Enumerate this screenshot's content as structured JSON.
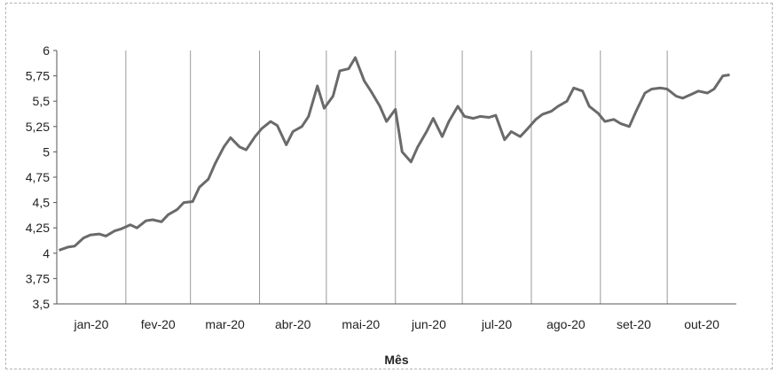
{
  "chart_data": {
    "type": "line",
    "title": "",
    "xlabel": "Mês",
    "ylabel": "",
    "ylim": [
      3.5,
      6
    ],
    "yticks": [
      "3,5",
      "3,75",
      "4",
      "4,25",
      "4,5",
      "4,75",
      "5",
      "5,25",
      "5,5",
      "5,75",
      "6"
    ],
    "categories": [
      "jan-20",
      "fev-20",
      "mar-20",
      "abr-20",
      "mai-20",
      "jun-20",
      "jul-20",
      "ago-20",
      "set-20",
      "out-20"
    ],
    "grid": "vertical",
    "line_color": "#6a6a6a",
    "series": [
      {
        "x": [
          "2020-01-02",
          "2020-01-06",
          "2020-01-09",
          "2020-01-13",
          "2020-01-16",
          "2020-01-20",
          "2020-01-23",
          "2020-01-27",
          "2020-01-30",
          "2020-02-03",
          "2020-02-06",
          "2020-02-10",
          "2020-02-13",
          "2020-02-17",
          "2020-02-20",
          "2020-02-24",
          "2020-02-27",
          "2020-03-02",
          "2020-03-05",
          "2020-03-09",
          "2020-03-12",
          "2020-03-16",
          "2020-03-19",
          "2020-03-23",
          "2020-03-26",
          "2020-03-30",
          "2020-04-02",
          "2020-04-06",
          "2020-04-09",
          "2020-04-13",
          "2020-04-16",
          "2020-04-20",
          "2020-04-23",
          "2020-04-27",
          "2020-04-30",
          "2020-05-04",
          "2020-05-07",
          "2020-05-11",
          "2020-05-14",
          "2020-05-18",
          "2020-05-21",
          "2020-05-25",
          "2020-05-28",
          "2020-06-01",
          "2020-06-04",
          "2020-06-08",
          "2020-06-11",
          "2020-06-15",
          "2020-06-18",
          "2020-06-22",
          "2020-06-25",
          "2020-06-29",
          "2020-07-02",
          "2020-07-06",
          "2020-07-09",
          "2020-07-13",
          "2020-07-16",
          "2020-07-20",
          "2020-07-23",
          "2020-07-27",
          "2020-07-30",
          "2020-08-03",
          "2020-08-06",
          "2020-08-10",
          "2020-08-13",
          "2020-08-17",
          "2020-08-20",
          "2020-08-24",
          "2020-08-27",
          "2020-08-31",
          "2020-09-03",
          "2020-09-07",
          "2020-09-10",
          "2020-09-14",
          "2020-09-17",
          "2020-09-21",
          "2020-09-24",
          "2020-09-28",
          "2020-10-01",
          "2020-10-05",
          "2020-10-08",
          "2020-10-12",
          "2020-10-15",
          "2020-10-19",
          "2020-10-22",
          "2020-10-26",
          "2020-10-29"
        ],
        "values": [
          4.03,
          4.06,
          4.07,
          4.15,
          4.18,
          4.19,
          4.17,
          4.22,
          4.24,
          4.28,
          4.25,
          4.32,
          4.33,
          4.31,
          4.38,
          4.43,
          4.5,
          4.51,
          4.65,
          4.73,
          4.88,
          5.05,
          5.14,
          5.05,
          5.02,
          5.15,
          5.23,
          5.3,
          5.26,
          5.07,
          5.2,
          5.25,
          5.35,
          5.65,
          5.43,
          5.55,
          5.8,
          5.82,
          5.93,
          5.7,
          5.6,
          5.45,
          5.3,
          5.42,
          5.0,
          4.9,
          5.05,
          5.2,
          5.33,
          5.15,
          5.3,
          5.45,
          5.35,
          5.33,
          5.35,
          5.34,
          5.36,
          5.12,
          5.2,
          5.15,
          5.22,
          5.32,
          5.37,
          5.4,
          5.45,
          5.5,
          5.63,
          5.6,
          5.45,
          5.38,
          5.3,
          5.32,
          5.28,
          5.25,
          5.4,
          5.58,
          5.62,
          5.63,
          5.62,
          5.55,
          5.53,
          5.57,
          5.6,
          5.58,
          5.62,
          5.75,
          5.76
        ]
      }
    ]
  }
}
